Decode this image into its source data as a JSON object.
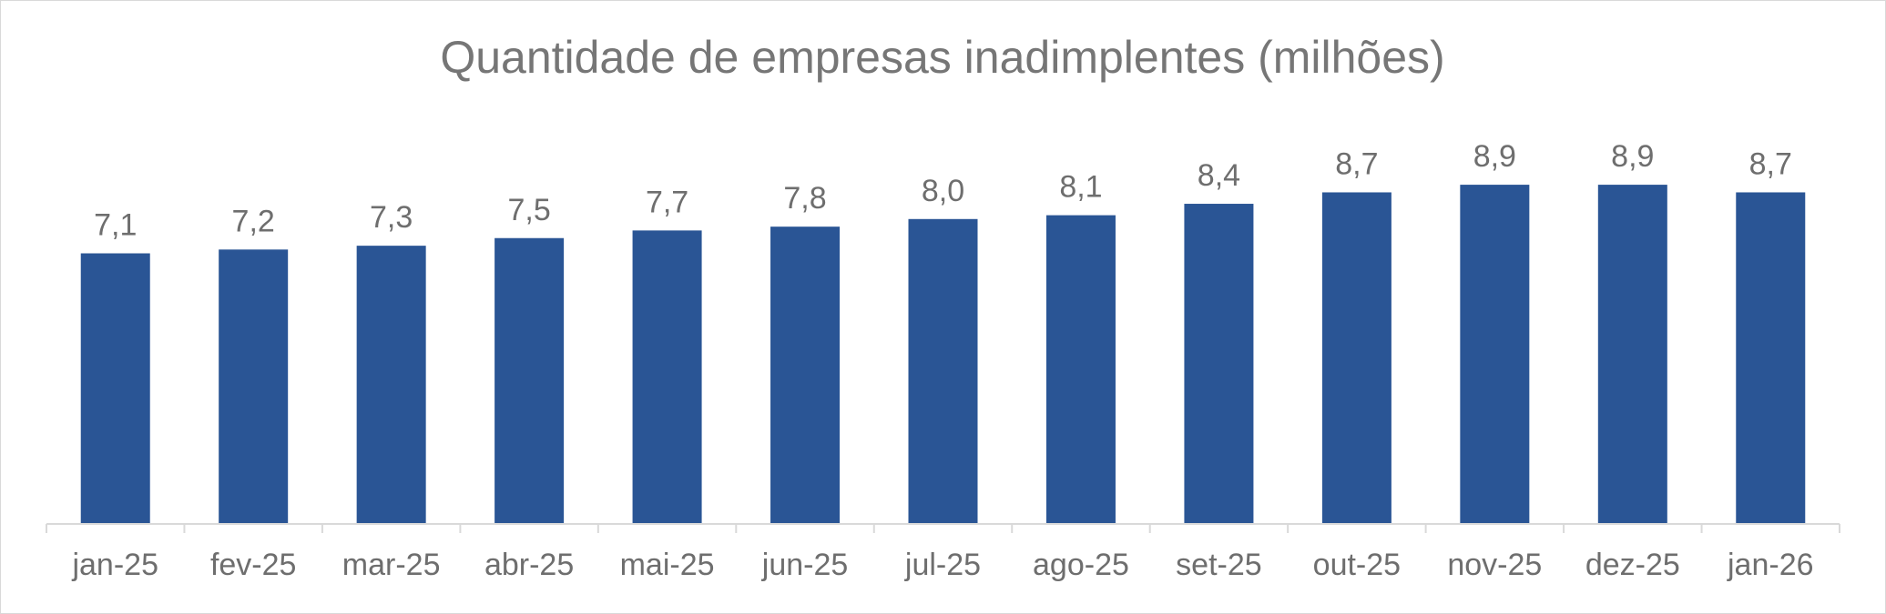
{
  "chart_data": {
    "type": "bar",
    "title": "Quantidade de empresas inadimplentes (milhões)",
    "xlabel": "",
    "ylabel": "",
    "categories": [
      "jan-25",
      "fev-25",
      "mar-25",
      "abr-25",
      "mai-25",
      "jun-25",
      "jul-25",
      "ago-25",
      "set-25",
      "out-25",
      "nov-25",
      "dez-25",
      "jan-26"
    ],
    "values": [
      7.1,
      7.2,
      7.3,
      7.5,
      7.7,
      7.8,
      8.0,
      8.1,
      8.4,
      8.7,
      8.9,
      8.9,
      8.7
    ],
    "data_labels": [
      "7,1",
      "7,2",
      "7,3",
      "7,5",
      "7,7",
      "7,8",
      "8,0",
      "8,1",
      "8,4",
      "8,7",
      "8,9",
      "8,9",
      "8,7"
    ],
    "ylim": [
      0,
      9.6
    ],
    "grid": false,
    "legend": "none",
    "colors": {
      "bar": "#2a5595",
      "axis": "#d9d9d9",
      "text": "#6e6e6e"
    }
  }
}
